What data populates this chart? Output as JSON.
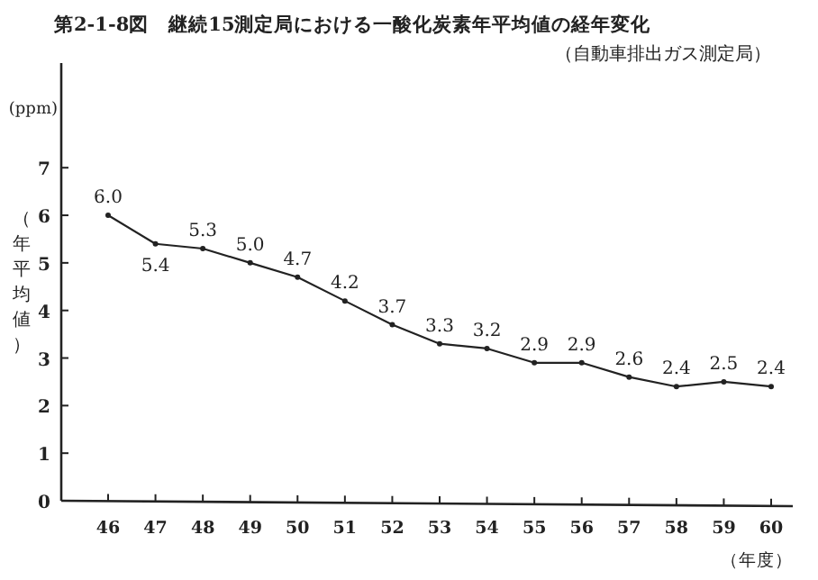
{
  "chart_data": {
    "type": "line",
    "title": "第2-1-8図　継続15測定局における一酸化炭素年平均値の経年変化",
    "subtitle": "（自動車排出ガス測定局）",
    "xlabel": "（年度）",
    "ylabel": "（年平均値）",
    "annotations": [
      "(ppm)"
    ],
    "categories": [
      "46",
      "47",
      "48",
      "49",
      "50",
      "51",
      "52",
      "53",
      "54",
      "55",
      "56",
      "57",
      "58",
      "59",
      "60"
    ],
    "series": [
      {
        "color": "#222222",
        "values": [
          6.0,
          5.4,
          5.3,
          5.0,
          4.7,
          4.2,
          3.7,
          3.3,
          3.2,
          2.9,
          2.9,
          2.6,
          2.4,
          2.5,
          2.4
        ],
        "value_labels": [
          "6.0",
          "5.4",
          "5.3",
          "5.0",
          "4.7",
          "4.2",
          "3.7",
          "3.3",
          "3.2",
          "2.9",
          "2.9",
          "2.6",
          "2.4",
          "2.5",
          "2.4"
        ]
      }
    ],
    "ylim": [
      0,
      9.2
    ],
    "yticks": [
      0,
      1,
      2,
      3,
      4,
      5,
      6,
      7
    ],
    "marker": "circle",
    "line_style": "solid"
  }
}
